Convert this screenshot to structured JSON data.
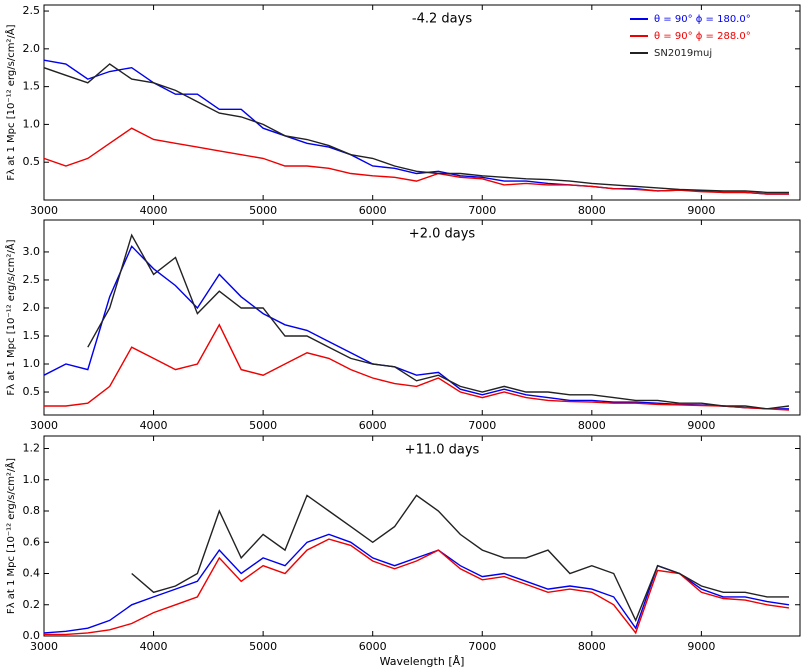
{
  "chart_data": [
    {
      "type": "line",
      "title": "-4.2 days",
      "ylabel": "Fλ at 1 Mpc [10⁻¹² erg/s/cm²/Å]",
      "legend": "upper right",
      "xlim": [
        3000,
        9900
      ],
      "ylim": [
        0,
        2.58
      ],
      "xticks": [
        3000,
        4000,
        5000,
        6000,
        7000,
        8000,
        9000
      ],
      "yticks": [
        0.5,
        {
          "value": 1,
          "label": "1.0"
        },
        1.5,
        {
          "value": 2,
          "label": "2.0"
        },
        2.5
      ],
      "x": [
        3000,
        3200,
        3400,
        3600,
        3800,
        4000,
        4200,
        4400,
        4600,
        4800,
        5000,
        5200,
        5400,
        5600,
        5800,
        6000,
        6200,
        6400,
        6600,
        6800,
        7000,
        7200,
        7400,
        7600,
        7800,
        8000,
        8200,
        8400,
        8600,
        8800,
        9000,
        9200,
        9400,
        9600,
        9800
      ],
      "series": [
        {
          "name": "θ = 90°   ϕ = 180.0°",
          "color": "#0000ee",
          "values": [
            1.85,
            1.8,
            1.6,
            1.7,
            1.75,
            1.55,
            1.4,
            1.4,
            1.2,
            1.2,
            0.95,
            0.85,
            0.75,
            0.7,
            0.6,
            0.45,
            0.42,
            0.35,
            0.38,
            0.32,
            0.3,
            0.25,
            0.25,
            0.22,
            0.2,
            0.18,
            0.15,
            0.15,
            0.12,
            0.13,
            0.12,
            0.1,
            0.1,
            0.08,
            0.08
          ]
        },
        {
          "name": "θ = 90°   ϕ = 288.0°",
          "color": "#ee0000",
          "values": [
            0.55,
            0.45,
            0.55,
            0.75,
            0.95,
            0.8,
            0.75,
            0.7,
            0.65,
            0.6,
            0.55,
            0.45,
            0.45,
            0.42,
            0.35,
            0.32,
            0.3,
            0.25,
            0.35,
            0.3,
            0.28,
            0.2,
            0.22,
            0.2,
            0.2,
            0.18,
            0.15,
            0.14,
            0.12,
            0.13,
            0.11,
            0.1,
            0.1,
            0.08,
            0.08
          ]
        },
        {
          "name": "SN2019muj",
          "color": "#222222",
          "values": [
            1.75,
            1.65,
            1.55,
            1.8,
            1.6,
            1.55,
            1.45,
            1.3,
            1.15,
            1.1,
            1.0,
            0.85,
            0.8,
            0.72,
            0.6,
            0.55,
            0.45,
            0.38,
            0.35,
            0.35,
            0.32,
            0.3,
            0.28,
            0.27,
            0.25,
            0.22,
            0.2,
            0.18,
            0.16,
            0.14,
            0.13,
            0.12,
            0.12,
            0.1,
            0.1
          ]
        }
      ]
    },
    {
      "type": "line",
      "title": "+2.0 days",
      "ylabel": "Fλ at 1 Mpc [10⁻¹² erg/s/cm²/Å]",
      "xlim": [
        3000,
        9900
      ],
      "ylim": [
        0.09,
        3.57
      ],
      "xticks": [
        3000,
        4000,
        5000,
        6000,
        7000,
        8000,
        9000
      ],
      "yticks": [
        0.5,
        {
          "value": 1,
          "label": "1.0"
        },
        1.5,
        {
          "value": 2,
          "label": "2.0"
        },
        2.5,
        {
          "value": 3,
          "label": "3.0"
        }
      ],
      "x": [
        3000,
        3200,
        3400,
        3600,
        3800,
        4000,
        4200,
        4400,
        4600,
        4800,
        5000,
        5200,
        5400,
        5600,
        5800,
        6000,
        6200,
        6400,
        6600,
        6800,
        7000,
        7200,
        7400,
        7600,
        7800,
        8000,
        8200,
        8400,
        8600,
        8800,
        9000,
        9200,
        9400,
        9600,
        9800
      ],
      "series": [
        {
          "color": "#0000ee",
          "values": [
            0.8,
            1.0,
            0.9,
            2.2,
            3.1,
            2.7,
            2.4,
            2.0,
            2.6,
            2.2,
            1.9,
            1.7,
            1.6,
            1.4,
            1.2,
            1.0,
            0.95,
            0.8,
            0.85,
            0.55,
            0.45,
            0.55,
            0.45,
            0.4,
            0.35,
            0.35,
            0.32,
            0.32,
            0.3,
            0.28,
            0.27,
            0.25,
            0.22,
            0.2,
            0.2
          ]
        },
        {
          "color": "#ee0000",
          "values": [
            0.25,
            0.25,
            0.3,
            0.6,
            1.3,
            1.1,
            0.9,
            1.0,
            1.7,
            0.9,
            0.8,
            1.0,
            1.2,
            1.1,
            0.9,
            0.75,
            0.65,
            0.6,
            0.75,
            0.5,
            0.4,
            0.5,
            0.4,
            0.35,
            0.33,
            0.32,
            0.3,
            0.3,
            0.28,
            0.27,
            0.26,
            0.25,
            0.22,
            0.2,
            0.18
          ]
        },
        {
          "color": "#222222",
          "values": [
            null,
            null,
            1.3,
            2.0,
            3.3,
            2.6,
            2.9,
            1.9,
            2.3,
            2.0,
            2.0,
            1.5,
            1.5,
            1.3,
            1.1,
            1.0,
            0.95,
            0.7,
            0.8,
            0.6,
            0.5,
            0.6,
            0.5,
            0.5,
            0.45,
            0.45,
            0.4,
            0.35,
            0.35,
            0.3,
            0.3,
            0.25,
            0.25,
            0.2,
            0.25
          ]
        }
      ]
    },
    {
      "type": "line",
      "title": "+11.0 days",
      "ylabel": "Fλ at 1 Mpc [10⁻¹² erg/s/cm²/Å]",
      "xlabel": "Wavelength [Å]",
      "xlim": [
        3000,
        9900
      ],
      "ylim": [
        0,
        1.28
      ],
      "xticks": [
        3000,
        4000,
        5000,
        6000,
        7000,
        8000,
        9000
      ],
      "yticks": [
        {
          "value": 0,
          "label": "0.0"
        },
        0.2,
        0.4,
        0.6,
        0.8,
        {
          "value": 1,
          "label": "1.0"
        },
        1.2
      ],
      "x": [
        3000,
        3200,
        3400,
        3600,
        3800,
        4000,
        4200,
        4400,
        4600,
        4800,
        5000,
        5200,
        5400,
        5600,
        5800,
        6000,
        6200,
        6400,
        6600,
        6800,
        7000,
        7200,
        7400,
        7600,
        7800,
        8000,
        8200,
        8400,
        8600,
        8800,
        9000,
        9200,
        9400,
        9600,
        9800
      ],
      "series": [
        {
          "color": "#0000ee",
          "values": [
            0.02,
            0.03,
            0.05,
            0.1,
            0.2,
            0.25,
            0.3,
            0.35,
            0.55,
            0.4,
            0.5,
            0.45,
            0.6,
            0.65,
            0.6,
            0.5,
            0.45,
            0.5,
            0.55,
            0.45,
            0.38,
            0.4,
            0.35,
            0.3,
            0.32,
            0.3,
            0.25,
            0.05,
            0.45,
            0.4,
            0.3,
            0.25,
            0.25,
            0.22,
            0.2
          ]
        },
        {
          "color": "#ee0000",
          "values": [
            0.01,
            0.01,
            0.02,
            0.04,
            0.08,
            0.15,
            0.2,
            0.25,
            0.5,
            0.35,
            0.45,
            0.4,
            0.55,
            0.62,
            0.58,
            0.48,
            0.43,
            0.48,
            0.55,
            0.43,
            0.36,
            0.38,
            0.33,
            0.28,
            0.3,
            0.28,
            0.2,
            0.02,
            0.42,
            0.4,
            0.28,
            0.24,
            0.23,
            0.2,
            0.18
          ]
        },
        {
          "color": "#222222",
          "values": [
            null,
            null,
            null,
            null,
            0.4,
            0.28,
            0.32,
            0.4,
            0.8,
            0.5,
            0.65,
            0.55,
            0.9,
            0.8,
            0.7,
            0.6,
            0.7,
            0.9,
            0.8,
            0.65,
            0.55,
            0.5,
            0.5,
            0.55,
            0.4,
            0.45,
            0.4,
            0.1,
            0.45,
            0.4,
            0.32,
            0.28,
            0.28,
            0.25,
            0.25
          ]
        }
      ]
    }
  ]
}
